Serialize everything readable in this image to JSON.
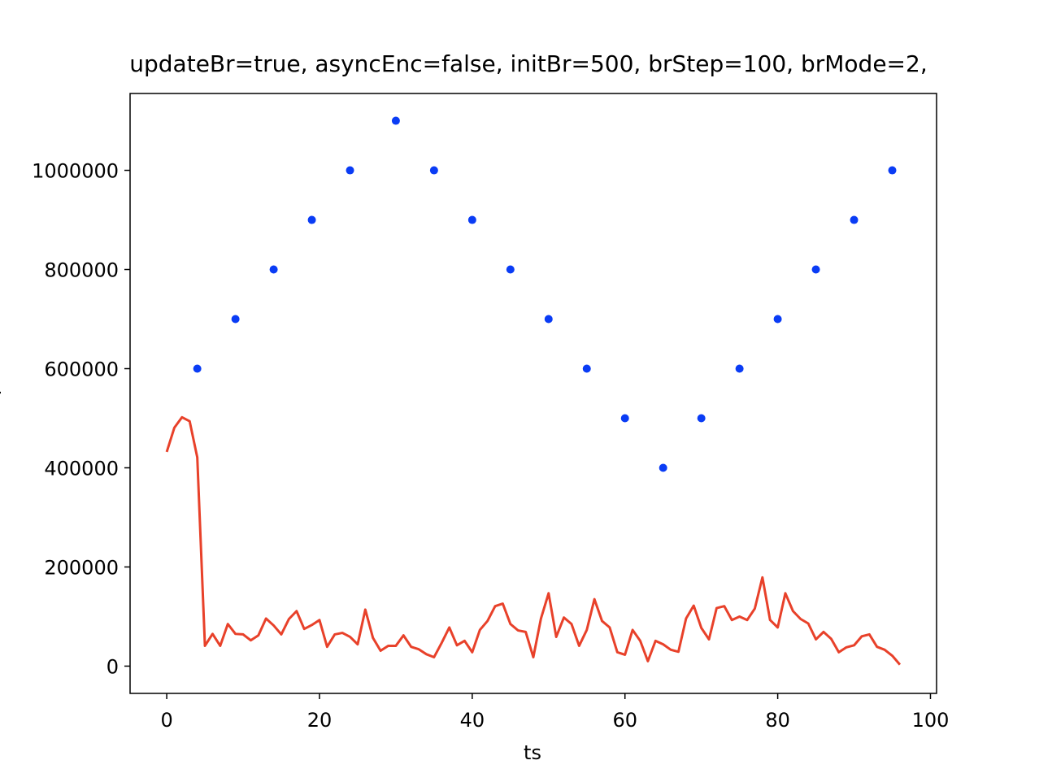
{
  "chart_data": {
    "type": "scatter-line",
    "title": "updateBr=true, asyncEnc=false, initBr=500, brStep=100, brMode=2,",
    "x_label": "ts",
    "y_label": "bps",
    "xlim": [
      -4.8,
      100.8
    ],
    "xticks": [
      0,
      20,
      40,
      60,
      80,
      100
    ],
    "ylim": [
      -55000,
      1155000
    ],
    "yticks": [
      0,
      200000,
      400000,
      600000,
      800000,
      1000000
    ],
    "series": [
      {
        "kind": "scatter",
        "color": "#0a3cf5",
        "x": [
          4,
          9,
          14,
          19,
          24,
          30,
          35,
          40,
          45,
          50,
          55,
          60,
          65,
          70,
          75,
          80,
          85,
          90,
          95
        ],
        "values": [
          600000,
          700000,
          800000,
          900000,
          1000000,
          1100000,
          1000000,
          900000,
          800000,
          700000,
          600000,
          500000,
          400000,
          500000,
          600000,
          700000,
          800000,
          900000,
          1000000
        ]
      },
      {
        "kind": "line",
        "color": "#e8412a",
        "x": [
          0,
          1,
          2,
          3,
          4,
          5,
          6,
          7,
          8,
          9,
          10,
          11,
          12,
          13,
          14,
          15,
          16,
          17,
          18,
          19,
          20,
          21,
          22,
          23,
          24,
          25,
          26,
          27,
          28,
          29,
          30,
          31,
          32,
          33,
          34,
          35,
          36,
          37,
          38,
          39,
          40,
          41,
          42,
          43,
          44,
          45,
          46,
          47,
          48,
          49,
          50,
          51,
          52,
          53,
          54,
          55,
          56,
          57,
          58,
          59,
          60,
          61,
          62,
          63,
          64,
          65,
          66,
          67,
          68,
          69,
          70,
          71,
          72,
          73,
          74,
          75,
          76,
          77,
          78,
          79,
          80,
          81,
          82,
          83,
          84,
          85,
          86,
          87,
          88,
          89,
          90,
          91,
          92,
          93,
          94,
          95,
          96
        ],
        "values": [
          432000,
          481000,
          502000,
          494000,
          421000,
          41000,
          65000,
          41000,
          85000,
          65000,
          64000,
          52000,
          62000,
          96000,
          82000,
          64000,
          95000,
          111000,
          75000,
          83000,
          93000,
          39000,
          64000,
          67000,
          59000,
          44000,
          114000,
          57000,
          31000,
          41000,
          41000,
          62000,
          39000,
          34000,
          24000,
          18000,
          47000,
          78000,
          42000,
          51000,
          28000,
          73000,
          91000,
          121000,
          126000,
          85000,
          72000,
          69000,
          18000,
          96000,
          147000,
          59000,
          98000,
          85000,
          41000,
          73000,
          135000,
          91000,
          78000,
          28000,
          23000,
          73000,
          51000,
          10000,
          51000,
          44000,
          33000,
          29000,
          96000,
          122000,
          77000,
          54000,
          117000,
          121000,
          93000,
          100000,
          93000,
          116000,
          179000,
          93000,
          78000,
          147000,
          111000,
          95000,
          86000,
          54000,
          69000,
          55000,
          28000,
          38000,
          42000,
          60000,
          64000,
          39000,
          33000,
          21000,
          3000
        ]
      }
    ]
  }
}
